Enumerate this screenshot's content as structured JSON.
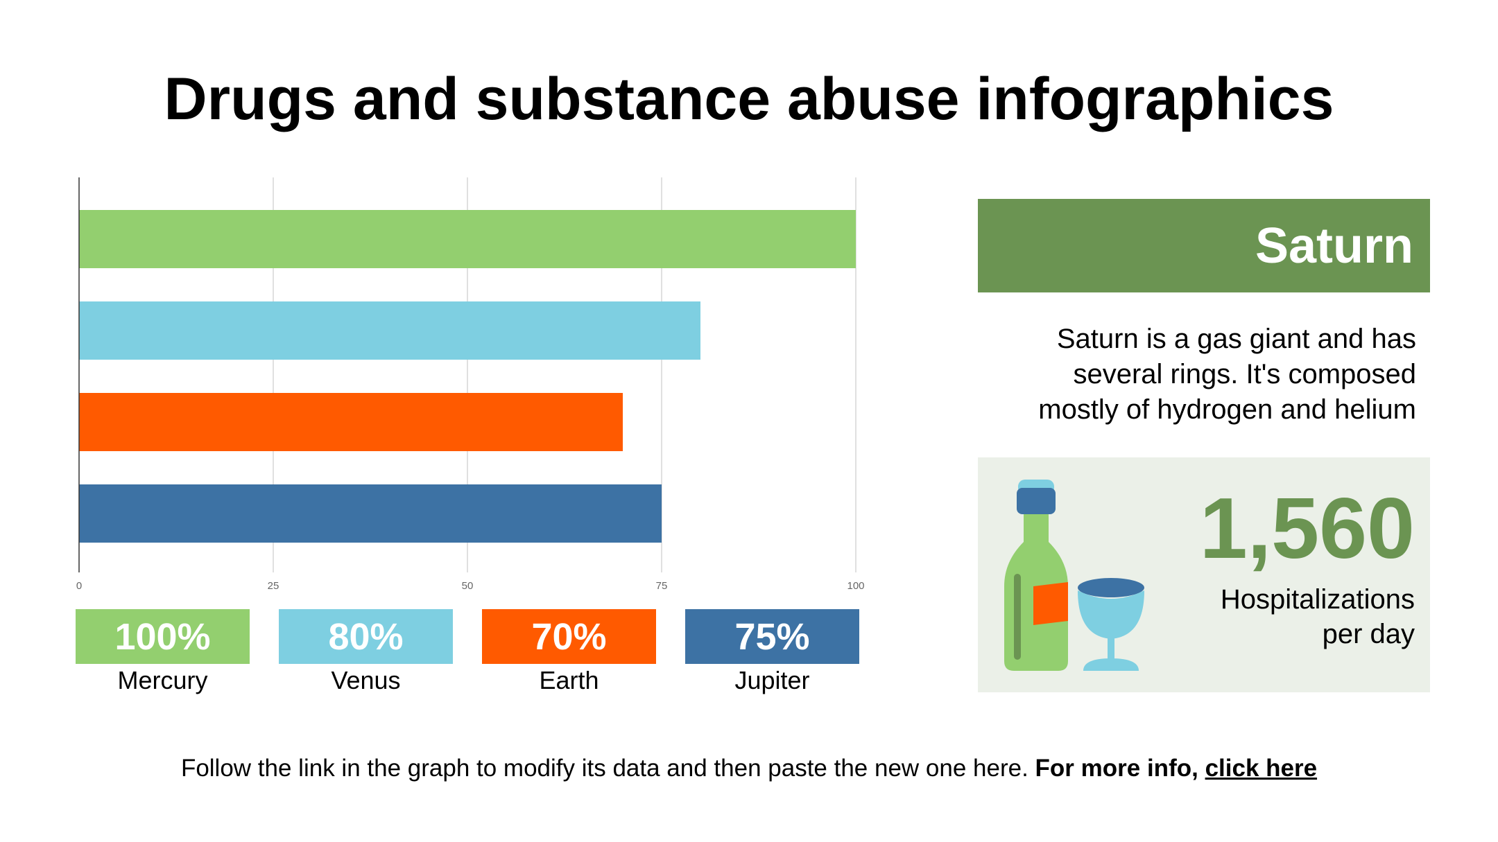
{
  "title": "Drugs and substance abuse infographics",
  "chart_data": {
    "type": "bar",
    "orientation": "horizontal",
    "categories": [
      "Mercury",
      "Venus",
      "Earth",
      "Jupiter"
    ],
    "values": [
      100,
      80,
      70,
      75
    ],
    "value_labels": [
      "100%",
      "80%",
      "70%",
      "75%"
    ],
    "colors": [
      "#93cf6f",
      "#7ecfe1",
      "#ff5a00",
      "#3d72a4"
    ],
    "xlim": [
      0,
      100
    ],
    "xticks": [
      0,
      25,
      50,
      75,
      100
    ],
    "grid": true
  },
  "panel": {
    "heading": "Saturn",
    "description_lines": [
      "Saturn is a gas giant and has",
      "several rings. It's composed",
      "mostly of hydrogen and helium"
    ],
    "accent_color": "#6b9452",
    "stat": {
      "value": "1,560",
      "label_lines": [
        "Hospitalizations",
        "per day"
      ]
    },
    "illustration_icons": [
      "bottle-icon",
      "wine-glass-icon"
    ]
  },
  "footer": {
    "text": "Follow the link in the graph to modify its data and then paste the new one here.",
    "bold_text": "For more info,",
    "link_text": "click here"
  }
}
